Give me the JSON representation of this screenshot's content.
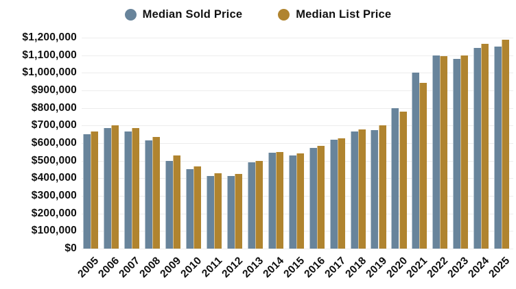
{
  "chart": {
    "background": "#ffffff",
    "text_color": "#0f0f0f",
    "grid_color": "#ececec",
    "sold_color": "#68849B",
    "list_color": "#B0842F"
  },
  "chart_data": {
    "type": "bar",
    "title": "",
    "xlabel": "",
    "ylabel": "",
    "grid": true,
    "legend_position": "top",
    "ylim": [
      0,
      1200000
    ],
    "ytick_step": 100000,
    "ytick_labels": [
      "$0",
      "$100,000",
      "$200,000",
      "$300,000",
      "$400,000",
      "$500,000",
      "$600,000",
      "$700,000",
      "$800,000",
      "$900,000",
      "$1,000,000",
      "$1,100,000",
      "$1,200,000"
    ],
    "categories": [
      "2005",
      "2006",
      "2007",
      "2008",
      "2009",
      "2010",
      "2011",
      "2012",
      "2013",
      "2014",
      "2015",
      "2016",
      "2017",
      "2018",
      "2019",
      "2020",
      "2021",
      "2022",
      "2023",
      "2024",
      "2025"
    ],
    "series": [
      {
        "name": "Median Sold Price",
        "color": "#68849B",
        "values": [
          650000,
          685000,
          665000,
          615000,
          500000,
          452000,
          413000,
          415000,
          493000,
          545000,
          531000,
          572000,
          618000,
          668000,
          674000,
          800000,
          1000000,
          1098000,
          1080000,
          1140000,
          1150000
        ]
      },
      {
        "name": "Median List Price",
        "color": "#B0842F",
        "values": [
          665000,
          703000,
          686000,
          634000,
          530000,
          468000,
          427000,
          425000,
          500000,
          550000,
          542000,
          585000,
          629000,
          678000,
          700000,
          778000,
          945000,
          1094000,
          1098000,
          1164000,
          1190000
        ]
      }
    ]
  }
}
